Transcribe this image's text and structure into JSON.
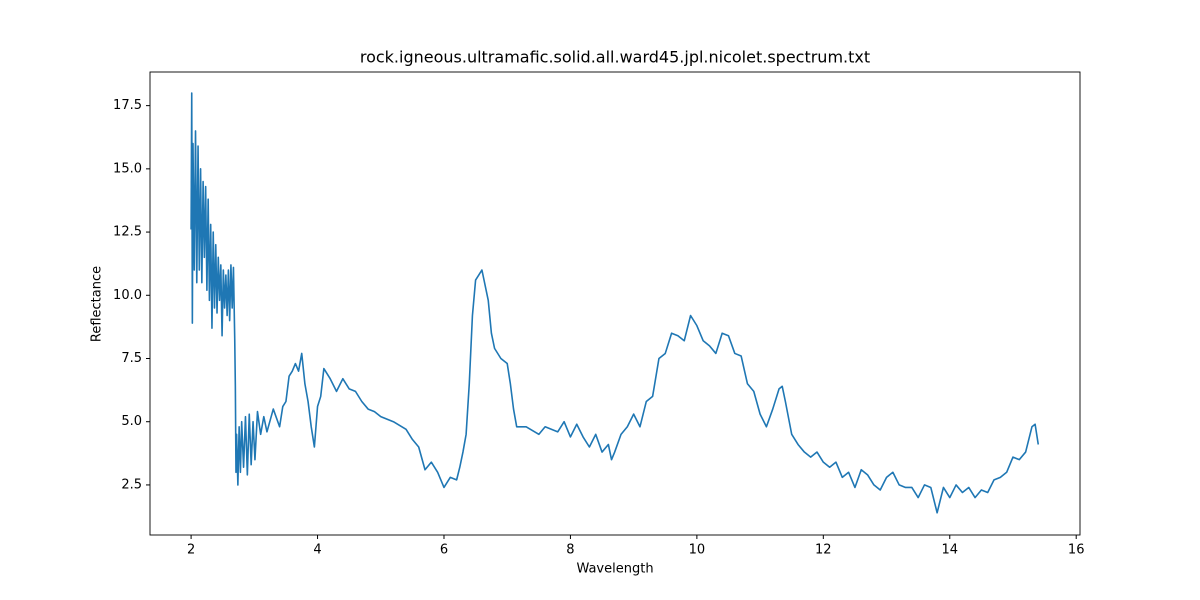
{
  "chart_data": {
    "type": "line",
    "title": "rock.igneous.ultramafic.solid.all.ward45.jpl.nicolet.spectrum.txt",
    "x_label": "Wavelength",
    "y_label": "Reflectance",
    "x": [
      2.0,
      2.01,
      2.02,
      2.03,
      2.05,
      2.07,
      2.09,
      2.11,
      2.13,
      2.15,
      2.17,
      2.19,
      2.21,
      2.23,
      2.25,
      2.27,
      2.29,
      2.31,
      2.33,
      2.35,
      2.37,
      2.39,
      2.41,
      2.43,
      2.45,
      2.47,
      2.49,
      2.51,
      2.53,
      2.55,
      2.57,
      2.59,
      2.61,
      2.63,
      2.65,
      2.67,
      2.69,
      2.7,
      2.71,
      2.72,
      2.74,
      2.76,
      2.78,
      2.8,
      2.83,
      2.86,
      2.89,
      2.92,
      2.95,
      2.98,
      3.01,
      3.05,
      3.1,
      3.15,
      3.2,
      3.3,
      3.4,
      3.45,
      3.5,
      3.55,
      3.6,
      3.65,
      3.7,
      3.75,
      3.8,
      3.85,
      3.9,
      3.95,
      4.0,
      4.05,
      4.1,
      4.2,
      4.3,
      4.4,
      4.5,
      4.6,
      4.7,
      4.8,
      4.9,
      5.0,
      5.2,
      5.4,
      5.5,
      5.6,
      5.7,
      5.8,
      5.9,
      6.0,
      6.1,
      6.2,
      6.25,
      6.3,
      6.35,
      6.4,
      6.45,
      6.5,
      6.55,
      6.6,
      6.7,
      6.75,
      6.8,
      6.9,
      7.0,
      7.05,
      7.1,
      7.15,
      7.3,
      7.5,
      7.6,
      7.8,
      7.9,
      8.0,
      8.1,
      8.2,
      8.3,
      8.4,
      8.5,
      8.6,
      8.65,
      8.7,
      8.8,
      8.9,
      9.0,
      9.1,
      9.2,
      9.3,
      9.4,
      9.5,
      9.6,
      9.7,
      9.8,
      9.9,
      10.0,
      10.1,
      10.2,
      10.3,
      10.4,
      10.5,
      10.6,
      10.7,
      10.8,
      10.9,
      11.0,
      11.1,
      11.2,
      11.3,
      11.35,
      11.4,
      11.5,
      11.6,
      11.7,
      11.8,
      11.9,
      12.0,
      12.1,
      12.2,
      12.3,
      12.4,
      12.5,
      12.6,
      12.7,
      12.8,
      12.9,
      13.0,
      13.1,
      13.2,
      13.3,
      13.4,
      13.5,
      13.6,
      13.7,
      13.8,
      13.9,
      14.0,
      14.1,
      14.2,
      14.3,
      14.4,
      14.5,
      14.6,
      14.7,
      14.8,
      14.9,
      15.0,
      15.1,
      15.2,
      15.3,
      15.35,
      15.4
    ],
    "series": [
      {
        "color": "#1f77b4",
        "values": [
          12.6,
          18.0,
          8.9,
          16.0,
          11,
          16.5,
          10.5,
          15.9,
          11,
          15,
          10.5,
          14.5,
          11.5,
          14.3,
          10.2,
          13.8,
          9.8,
          12.8,
          8.7,
          12.5,
          9.5,
          12.0,
          9.3,
          11.5,
          9.8,
          11.2,
          8.4,
          11.0,
          9.5,
          10.8,
          9.2,
          11.0,
          9.0,
          11.2,
          9.5,
          11.1,
          8.3,
          6.4,
          3.0,
          4.5,
          2.5,
          4.8,
          3.0,
          5.0,
          3.2,
          5.2,
          2.9,
          5.3,
          3.3,
          5.0,
          3.5,
          5.4,
          4.5,
          5.2,
          4.6,
          5.5,
          4.8,
          5.6,
          5.8,
          6.8,
          7.0,
          7.3,
          7.0,
          7.7,
          6.5,
          5.8,
          4.8,
          4.0,
          5.6,
          6.0,
          7.1,
          6.7,
          6.2,
          6.7,
          6.3,
          6.2,
          5.8,
          5.5,
          5.4,
          5.2,
          5.0,
          4.7,
          4.3,
          4.0,
          3.1,
          3.4,
          3.0,
          2.4,
          2.8,
          2.7,
          3.2,
          3.8,
          4.5,
          6.5,
          9.2,
          10.6,
          10.8,
          11.0,
          9.8,
          8.5,
          7.9,
          7.5,
          7.3,
          6.5,
          5.5,
          4.8,
          4.8,
          4.5,
          4.8,
          4.6,
          5.0,
          4.4,
          4.9,
          4.4,
          4.0,
          4.5,
          3.8,
          4.1,
          3.5,
          3.8,
          4.5,
          4.8,
          5.3,
          4.8,
          5.8,
          6.0,
          7.5,
          7.7,
          8.5,
          8.4,
          8.2,
          9.2,
          8.8,
          8.2,
          8.0,
          7.7,
          8.5,
          8.4,
          7.7,
          7.6,
          6.5,
          6.2,
          5.3,
          4.8,
          5.5,
          6.3,
          6.4,
          5.8,
          4.5,
          4.1,
          3.8,
          3.6,
          3.8,
          3.4,
          3.2,
          3.4,
          2.8,
          3.0,
          2.4,
          3.1,
          2.9,
          2.5,
          2.3,
          2.8,
          3.0,
          2.5,
          2.4,
          2.4,
          2.0,
          2.5,
          2.4,
          1.4,
          2.4,
          2.0,
          2.5,
          2.2,
          2.4,
          2.0,
          2.3,
          2.2,
          2.7,
          2.8,
          3.0,
          3.6,
          3.5,
          3.8,
          4.8,
          4.9,
          4.1
        ]
      }
    ],
    "xlim": [
      1.35,
      16.06
    ],
    "ylim": [
      0.52,
      18.83
    ],
    "xticks": [
      2,
      4,
      6,
      8,
      10,
      12,
      14,
      16
    ],
    "yticks": [
      2.5,
      {
        "value": 5,
        "label": "5.0"
      },
      7.5,
      {
        "value": 10,
        "label": "10.0"
      },
      12.5,
      {
        "value": 15,
        "label": "15.0"
      },
      17.5
    ],
    "grid": false
  }
}
